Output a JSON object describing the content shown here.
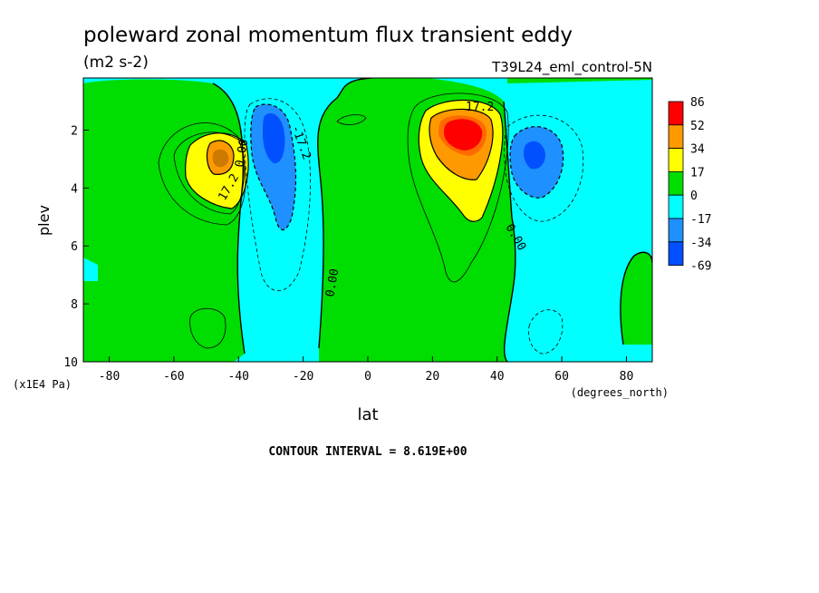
{
  "chart_data": {
    "type": "heatmap",
    "title": "poleward zonal momentum flux transient eddy",
    "units": "(m2 s-2)",
    "run_label": "T39L24_eml_control-5N",
    "xlabel": "lat",
    "x_units": "(degrees_north)",
    "ylabel": "plev",
    "y_units": "(x1E4 Pa)",
    "xlim": [
      -88,
      88
    ],
    "ylim": [
      10,
      0.2
    ],
    "x_ticks": [
      "-80",
      "-60",
      "-40",
      "-20",
      "0",
      "20",
      "40",
      "60",
      "80"
    ],
    "y_ticks": [
      "2",
      "4",
      "6",
      "8",
      "10"
    ],
    "contour_interval_text": "CONTOUR INTERVAL = 8.619E+00",
    "colorbar": {
      "labels": [
        "86",
        "52",
        "34",
        "17",
        "0",
        "-17",
        "-34",
        "-69"
      ],
      "colors": [
        "#ff0000",
        "#ff9900",
        "#ffff00",
        "#00dd00",
        "#00ffff",
        "#1e90ff",
        "#0050ff"
      ]
    },
    "contour_labels": [
      "17.2",
      "17.2",
      "-17.2",
      "0.00",
      "0.00",
      "0.00"
    ],
    "features": [
      {
        "sign": "positive",
        "lat": -45,
        "plev": 3.0,
        "peak": 34
      },
      {
        "sign": "negative",
        "lat": -28,
        "plev": 2.6,
        "peak": -34
      },
      {
        "sign": "positive",
        "lat": 30,
        "plev": 2.0,
        "peak": 86
      },
      {
        "sign": "negative",
        "lat": 50,
        "plev": 3.0,
        "peak": -34
      }
    ]
  }
}
